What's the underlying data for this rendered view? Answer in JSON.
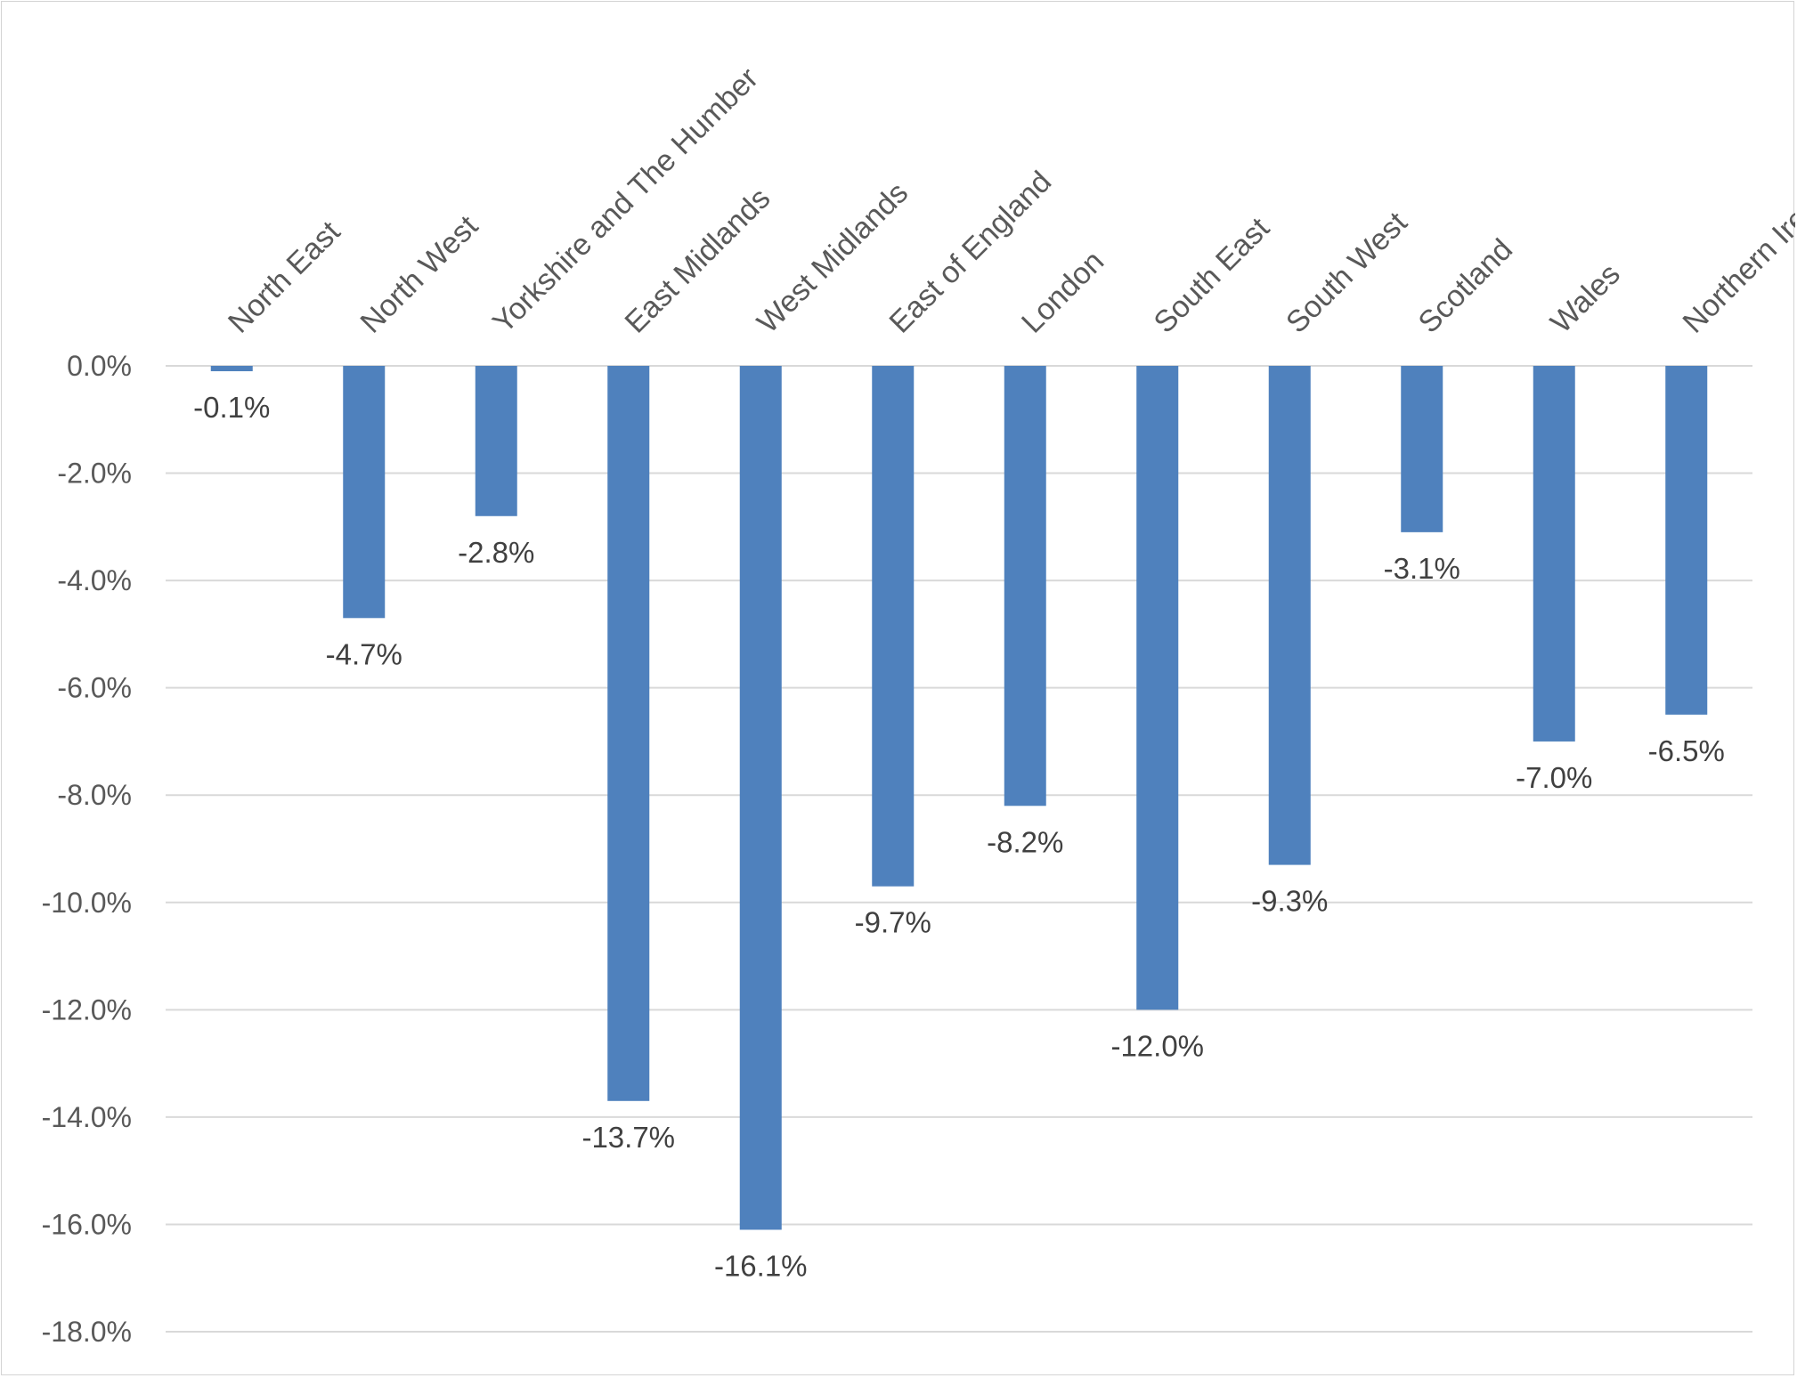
{
  "chart_data": {
    "type": "bar",
    "title": "",
    "xlabel": "",
    "ylabel": "",
    "categories": [
      "North East",
      "North West",
      "Yorkshire and The Humber",
      "East Midlands",
      "West Midlands",
      "East of England",
      "London",
      "South East",
      "South West",
      "Scotland",
      "Wales",
      "Northern Ireland"
    ],
    "values": [
      -0.1,
      -4.7,
      -2.8,
      -13.7,
      -16.1,
      -9.7,
      -8.2,
      -12.0,
      -9.3,
      -3.1,
      -7.0,
      -6.5
    ],
    "value_labels": [
      "-0.1%",
      "-4.7%",
      "-2.8%",
      "-13.7%",
      "-16.1%",
      "-9.7%",
      "-8.2%",
      "-12.0%",
      "-9.3%",
      "-3.1%",
      "-7.0%",
      "-6.5%"
    ],
    "y_ticks": [
      "0.0%",
      "-2.0%",
      "-4.0%",
      "-6.0%",
      "-8.0%",
      "-10.0%",
      "-12.0%",
      "-14.0%",
      "-16.0%",
      "-18.0%"
    ],
    "ylim": [
      -18,
      0
    ],
    "grid": true,
    "legend": "none",
    "colors": {
      "bar": "#4f81bd",
      "gridline": "#d9d9d9",
      "axis_text": "#595959",
      "data_label_text": "#404040",
      "border": "#d4d4d4"
    }
  }
}
